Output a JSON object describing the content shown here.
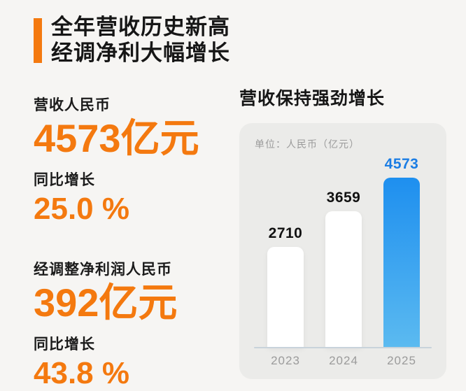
{
  "colors": {
    "background": "#F6F5F3",
    "card_background": "#EBEBE9",
    "accent_orange": "#F4790F",
    "title_text": "#161616",
    "muted_text": "#9B9B9B",
    "bar_white": "#FFFFFF",
    "bar_blue_top": "#1E8FEF",
    "bar_blue_bottom": "#5BBAF0",
    "blue_value_label": "#1B7DE4",
    "axis_baseline": "#C8D3DB"
  },
  "header": {
    "title_line1": "全年营收历史新高",
    "title_line2": "经调净利大幅增长"
  },
  "stats": [
    {
      "label": "营收人民币",
      "value": "4573亿元",
      "growth_label": "同比增长",
      "growth_value": "25.0 %"
    },
    {
      "label": "经调整净利润人民币",
      "value": "392亿元",
      "growth_label": "同比增长",
      "growth_value": "43.8 %"
    }
  ],
  "chart_section": {
    "heading": "营收保持强劲增长",
    "unit_note": "单位：人民币（亿元）"
  },
  "chart_data": {
    "type": "bar",
    "title": "营收保持强劲增长",
    "unit": "人民币（亿元）",
    "categories": [
      "2023",
      "2024",
      "2025"
    ],
    "values": [
      2710,
      3659,
      4573
    ],
    "bar_colors": [
      "white",
      "white",
      "gradient-blue"
    ],
    "value_label_colors": [
      "#111111",
      "#111111",
      "#1B7DE4"
    ],
    "highlight_index": 2,
    "ylim": [
      0,
      4800
    ],
    "grid": false,
    "legend": false,
    "xlabel": "",
    "ylabel": ""
  }
}
